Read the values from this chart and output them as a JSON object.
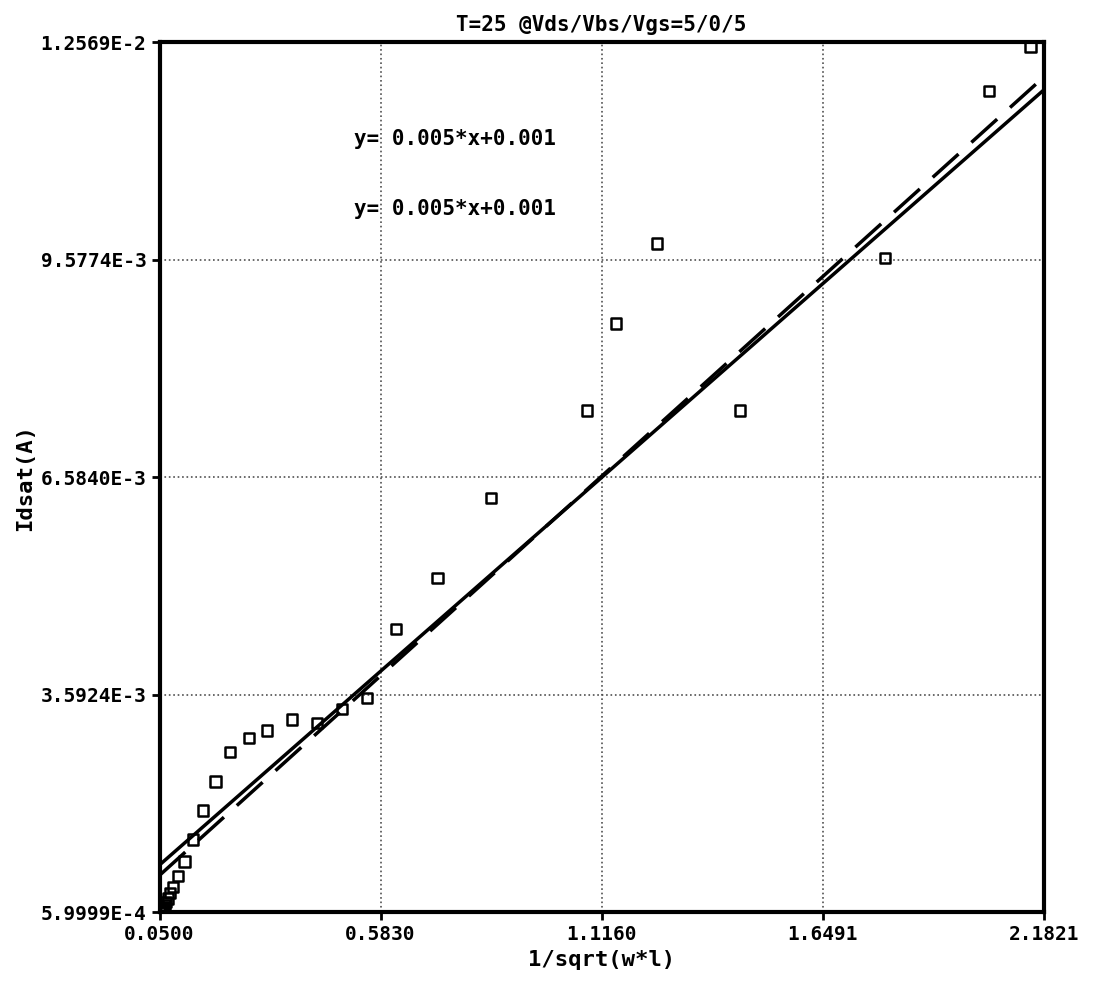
{
  "title": "T=25 @Vds/Vbs/Vgs=5/0/5",
  "xlabel": "1/sqrt(w*l)",
  "ylabel": "Idsat(A)",
  "xlim": [
    0.05,
    2.1821
  ],
  "ylim": [
    0.00059999,
    0.012569
  ],
  "xticks": [
    0.05,
    0.583,
    1.116,
    1.6491,
    2.1821
  ],
  "yticks": [
    0.00059999,
    0.0035924,
    0.006584,
    0.0095774,
    0.012569
  ],
  "ytick_labels": [
    "5.9999E-4",
    "3.5924E-3",
    "6.5840E-3",
    "9.5774E-3",
    "1.2569E-2"
  ],
  "xtick_labels": [
    "0.0500",
    "0.5830",
    "1.1160",
    "1.6491",
    "2.1821"
  ],
  "annotation_line1": "y= 0.005*x+0.001",
  "annotation_line2": "y= 0.005*x+0.001",
  "slope1": 0.005,
  "intercept1": 0.001,
  "slope2": 0.00515,
  "intercept2": 0.00085,
  "background_color": "#ffffff",
  "line1_color": "#000000",
  "line2_color": "#000000",
  "scatter_points_x": [
    0.05,
    0.051,
    0.052,
    0.054,
    0.056,
    0.058,
    0.06,
    0.063,
    0.066,
    0.07,
    0.075,
    0.083,
    0.095,
    0.11,
    0.13,
    0.155,
    0.185,
    0.22,
    0.265,
    0.31,
    0.37,
    0.43,
    0.49,
    0.55,
    0.62,
    0.72,
    0.85,
    1.08,
    1.15,
    1.25,
    1.45,
    1.8,
    2.05,
    2.15
  ],
  "scatter_points_y": [
    0.00059999,
    0.000605,
    0.00061,
    0.00062,
    0.00063,
    0.00065,
    0.00067,
    0.0007,
    0.00074,
    0.00079,
    0.00086,
    0.00095,
    0.0011,
    0.0013,
    0.0016,
    0.002,
    0.0024,
    0.0028,
    0.003,
    0.0031,
    0.00325,
    0.0032,
    0.0034,
    0.00355,
    0.0045,
    0.0052,
    0.0063,
    0.0075,
    0.0087,
    0.0098,
    0.0075,
    0.0096,
    0.0119,
    0.0125
  ],
  "scatter_marker": "s",
  "scatter_size": 55,
  "scatter_facecolor": "none",
  "scatter_edgecolor": "#000000",
  "scatter_linewidth": 1.8,
  "grid_color": "#505050",
  "grid_linestyle": ":",
  "grid_linewidth": 1.2
}
